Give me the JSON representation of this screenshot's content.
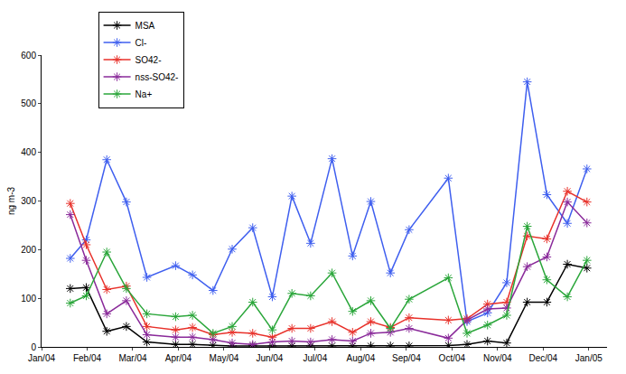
{
  "chart_data": {
    "type": "line",
    "y_label": "ng m-3",
    "x": [
      0.63,
      0.98,
      1.43,
      1.86,
      2.31,
      2.94,
      3.31,
      3.76,
      4.18,
      4.63,
      5.06,
      5.49,
      5.9,
      6.37,
      6.82,
      7.22,
      7.65,
      8.06,
      8.92,
      9.33,
      9.78,
      10.2,
      10.65,
      11.08,
      11.53,
      11.96
    ],
    "xlim": [
      0,
      12.4
    ],
    "xticks": [
      {
        "value": 0,
        "label": "Jan/04"
      },
      {
        "value": 1,
        "label": "Feb/04"
      },
      {
        "value": 2,
        "label": "Mar/04"
      },
      {
        "value": 3,
        "label": "Apr/04"
      },
      {
        "value": 4,
        "label": "May/04"
      },
      {
        "value": 5,
        "label": "Jun/04"
      },
      {
        "value": 6,
        "label": "Jul/04"
      },
      {
        "value": 7,
        "label": "Aug/04"
      },
      {
        "value": 8,
        "label": "Sep/04"
      },
      {
        "value": 9,
        "label": "Oct/04"
      },
      {
        "value": 10,
        "label": "Nov/04"
      },
      {
        "value": 11,
        "label": "Dec/04"
      },
      {
        "value": 12,
        "label": "Jan/05"
      }
    ],
    "ylim": [
      0,
      600
    ],
    "yticks": [
      0,
      100,
      200,
      300,
      400,
      500,
      600
    ],
    "grid": false,
    "legend": "top-left",
    "marker": "asterisk",
    "series": [
      {
        "name": "MSA",
        "color": "#000000",
        "values": [
          120,
          122,
          32,
          42,
          10,
          5,
          5,
          3,
          2,
          2,
          2,
          2,
          2,
          2,
          2,
          2,
          2,
          2,
          3,
          5,
          12,
          8,
          92,
          92,
          170,
          162
        ]
      },
      {
        "name": "Cl-",
        "color": "#3f5fef",
        "values": [
          182,
          220,
          385,
          298,
          143,
          167,
          148,
          116,
          201,
          245,
          103,
          310,
          213,
          387,
          187,
          299,
          152,
          241,
          347,
          52,
          70,
          132,
          545,
          313,
          254,
          366
        ]
      },
      {
        "name": "SO42-",
        "color": "#e8312a",
        "values": [
          295,
          210,
          118,
          125,
          42,
          35,
          40,
          25,
          30,
          28,
          20,
          38,
          38,
          52,
          30,
          52,
          40,
          60,
          55,
          58,
          88,
          92,
          228,
          222,
          320,
          298
        ]
      },
      {
        "name": "nss-SO42-",
        "color": "#8a2a9a",
        "values": [
          272,
          178,
          68,
          95,
          25,
          20,
          20,
          15,
          8,
          5,
          10,
          12,
          10,
          15,
          12,
          28,
          30,
          38,
          18,
          55,
          78,
          80,
          165,
          185,
          298,
          255
        ]
      },
      {
        "name": "Na+",
        "color": "#2aa63a",
        "values": [
          90,
          105,
          195,
          120,
          68,
          62,
          65,
          28,
          42,
          92,
          35,
          110,
          105,
          152,
          73,
          95,
          38,
          98,
          142,
          28,
          45,
          65,
          248,
          138,
          103,
          178
        ]
      }
    ]
  }
}
